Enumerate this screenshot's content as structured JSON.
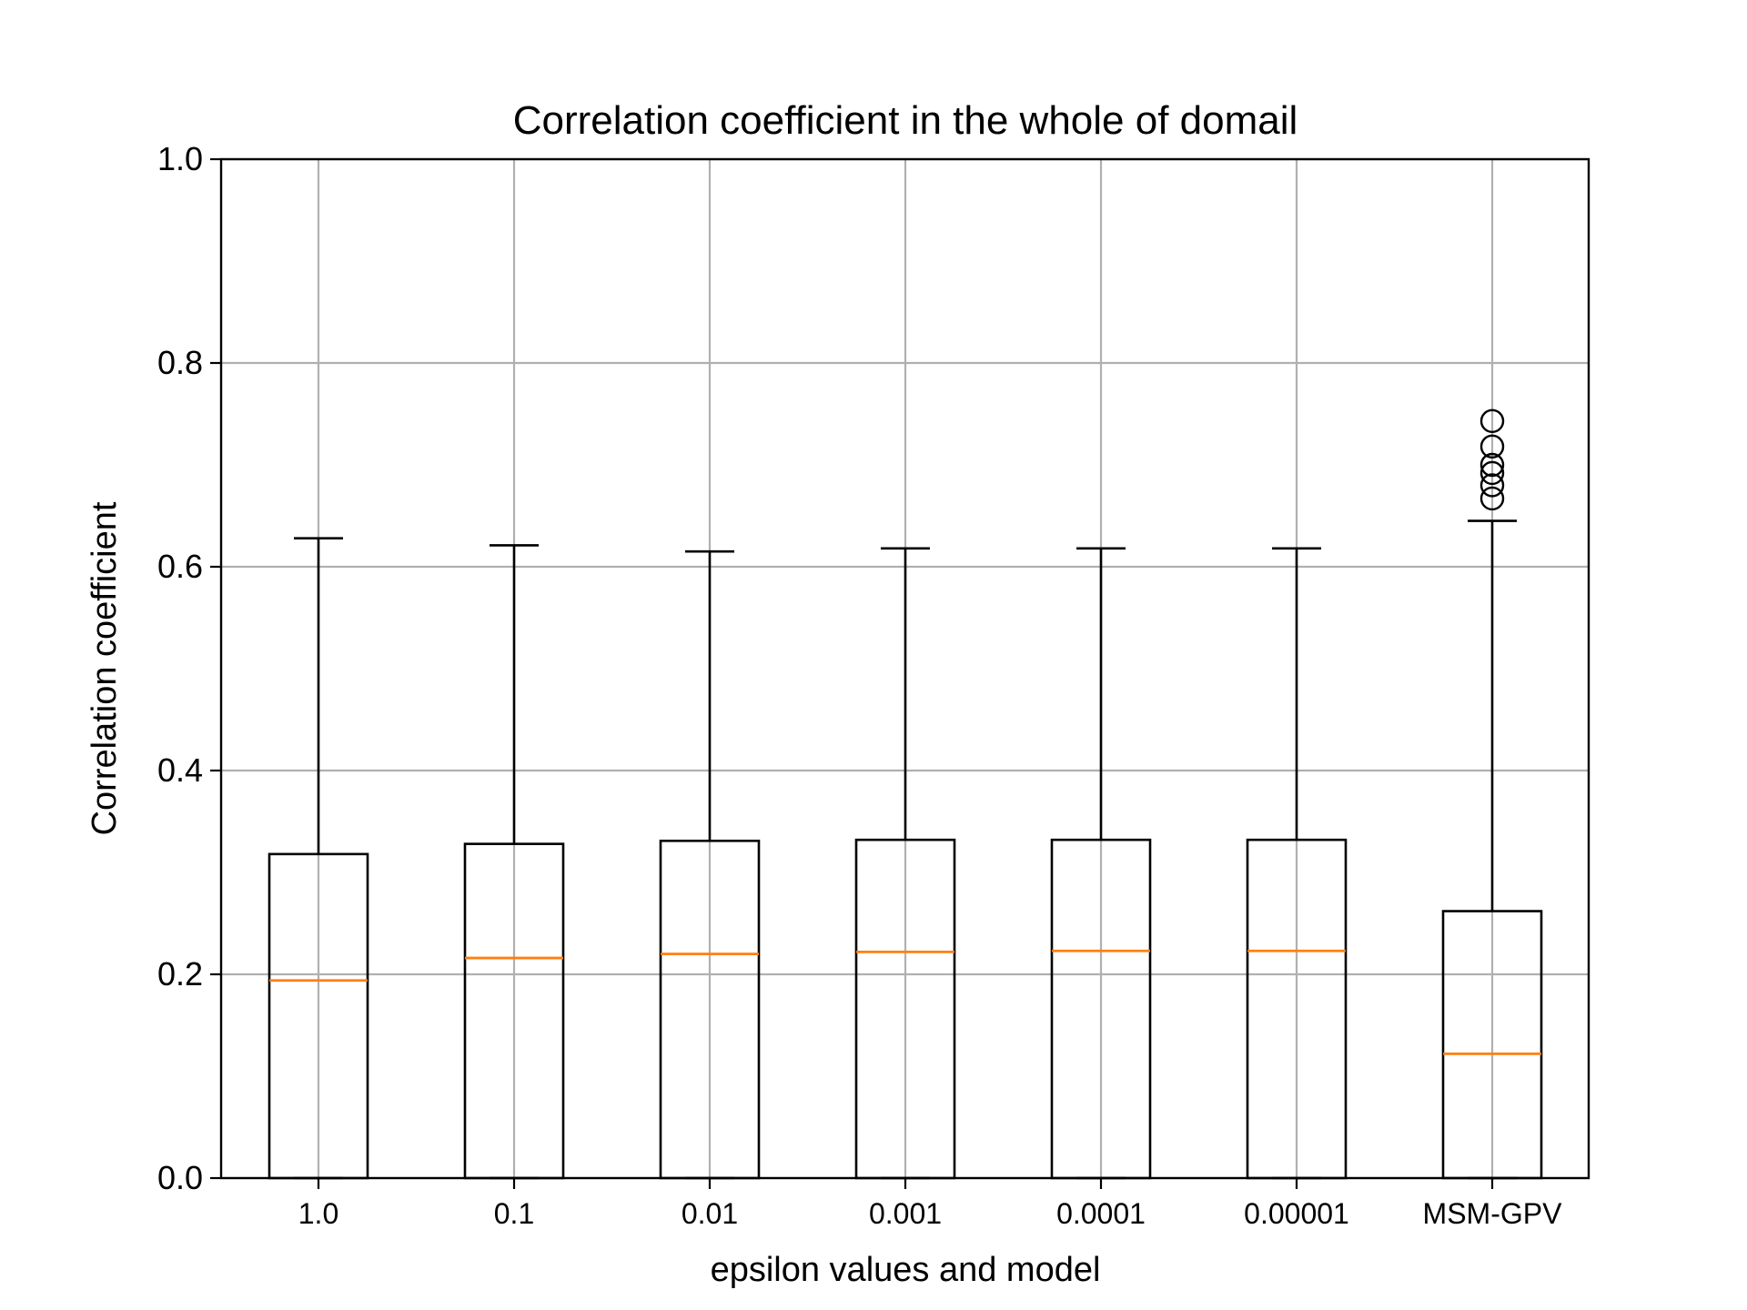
{
  "chart_data": {
    "type": "box",
    "title": "Correlation coefficient in the whole of domail",
    "xlabel": "epsilon values and model",
    "ylabel": "Correlation coefficient",
    "ylim": [
      0.0,
      1.0
    ],
    "yticks": [
      0.0,
      0.2,
      0.4,
      0.6,
      0.8,
      1.0
    ],
    "ytick_labels": [
      "0.0",
      "0.2",
      "0.4",
      "0.6",
      "0.8",
      "1.0"
    ],
    "grid": true,
    "categories": [
      "1.0",
      "0.1",
      "0.01",
      "0.001",
      "0.0001",
      "0.00001",
      "MSM-GPV"
    ],
    "boxes": [
      {
        "category": "1.0",
        "whisker_low": 0.0,
        "q1": 0.0,
        "median": 0.194,
        "q3": 0.318,
        "whisker_high": 0.628,
        "outliers": []
      },
      {
        "category": "0.1",
        "whisker_low": 0.0,
        "q1": 0.0,
        "median": 0.216,
        "q3": 0.328,
        "whisker_high": 0.621,
        "outliers": []
      },
      {
        "category": "0.01",
        "whisker_low": 0.0,
        "q1": 0.0,
        "median": 0.22,
        "q3": 0.331,
        "whisker_high": 0.615,
        "outliers": []
      },
      {
        "category": "0.001",
        "whisker_low": 0.0,
        "q1": 0.0,
        "median": 0.222,
        "q3": 0.332,
        "whisker_high": 0.618,
        "outliers": []
      },
      {
        "category": "0.0001",
        "whisker_low": 0.0,
        "q1": 0.0,
        "median": 0.223,
        "q3": 0.332,
        "whisker_high": 0.618,
        "outliers": []
      },
      {
        "category": "0.00001",
        "whisker_low": 0.0,
        "q1": 0.0,
        "median": 0.223,
        "q3": 0.332,
        "whisker_high": 0.618,
        "outliers": []
      },
      {
        "category": "MSM-GPV",
        "whisker_low": 0.0,
        "q1": 0.0,
        "median": 0.122,
        "q3": 0.262,
        "whisker_high": 0.645,
        "outliers": [
          0.667,
          0.68,
          0.692,
          0.7,
          0.718,
          0.743
        ]
      }
    ],
    "colors": {
      "box": "#000000",
      "median": "#ff7f0e",
      "grid": "#b0b0b0"
    }
  }
}
